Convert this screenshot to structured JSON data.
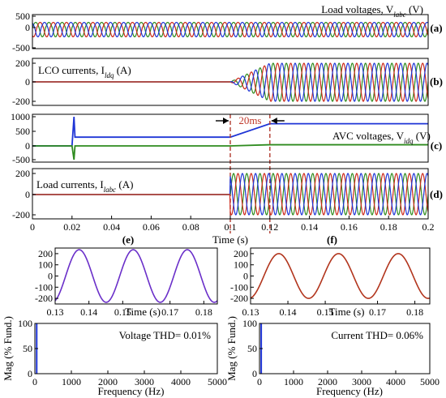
{
  "chart_data": [
    {
      "id": "a",
      "type": "line",
      "panel_label": "(a)",
      "annotation": "Load voltages, V",
      "annotation_sub": "labc",
      "annotation_unit": " (V)",
      "xlim": [
        0,
        0.2
      ],
      "ylim": [
        -500,
        500
      ],
      "yticks": [
        "500",
        "0",
        "-500"
      ],
      "series": [
        {
          "amplitude": 230,
          "freq_hz": 150,
          "phase_deg": 0,
          "color": "#2e8b1e"
        },
        {
          "amplitude": 230,
          "freq_hz": 150,
          "phase_deg": -120,
          "color": "#cc2a1a"
        },
        {
          "amplitude": 230,
          "freq_hz": 150,
          "phase_deg": 120,
          "color": "#1f35d6"
        }
      ]
    },
    {
      "id": "b",
      "type": "line",
      "panel_label": "(b)",
      "annotation": "LCO currents, I",
      "annotation_sub": "ldq",
      "annotation_unit": " (A)",
      "xlim": [
        0,
        0.2
      ],
      "ylim": [
        -200,
        200
      ],
      "yticks": [
        "200",
        "0",
        "-200"
      ],
      "step_time": 0.1,
      "ramp_end": 0.12,
      "series": [
        {
          "amplitude": 200,
          "freq_hz": 150,
          "phase_deg": 0,
          "color": "#2e8b1e"
        },
        {
          "amplitude": 200,
          "freq_hz": 150,
          "phase_deg": -120,
          "color": "#cc2a1a"
        },
        {
          "amplitude": 200,
          "freq_hz": 150,
          "phase_deg": 120,
          "color": "#1f35d6"
        }
      ]
    },
    {
      "id": "c",
      "type": "line",
      "panel_label": "(c)",
      "annotation": "AVC voltages, V",
      "annotation_sub": "idq",
      "annotation_unit": " (V)",
      "interval_label": "20ms",
      "xlim": [
        0,
        0.2
      ],
      "ylim": [
        -500,
        1000
      ],
      "yticks": [
        "1000",
        "500",
        "0",
        "-500"
      ],
      "spike_time": 0.021,
      "series": [
        {
          "name_code": "vd",
          "color": "#1f35d6",
          "points": [
            [
              0,
              0
            ],
            [
              0.02,
              0
            ],
            [
              0.021,
              1000
            ],
            [
              0.0215,
              300
            ],
            [
              0.023,
              300
            ],
            [
              0.1,
              300
            ],
            [
              0.12,
              760
            ],
            [
              0.2,
              760
            ]
          ]
        },
        {
          "name_code": "vq",
          "color": "#2e8b1e",
          "points": [
            [
              0,
              0
            ],
            [
              0.02,
              0
            ],
            [
              0.021,
              -500
            ],
            [
              0.0215,
              0
            ],
            [
              0.023,
              0
            ],
            [
              0.1,
              0
            ],
            [
              0.12,
              40
            ],
            [
              0.2,
              40
            ]
          ]
        }
      ]
    },
    {
      "id": "d",
      "type": "line",
      "panel_label": "(d)",
      "annotation": "Load currents, I",
      "annotation_sub": "labc",
      "annotation_unit": " (A)",
      "xlim": [
        0,
        0.2
      ],
      "ylim": [
        -200,
        200
      ],
      "yticks": [
        "200",
        "0",
        "-200"
      ],
      "xticks": [
        "0",
        "0.02",
        "0.04",
        "0.06",
        "0.08",
        "0.1",
        "0.12",
        "0.14",
        "0.16",
        "0.18",
        "0.2"
      ],
      "xlabel": "Time (s)",
      "step_time": 0.1,
      "series": [
        {
          "amplitude": 200,
          "freq_hz": 150,
          "phase_deg": 0,
          "color": "#2e8b1e"
        },
        {
          "amplitude": 200,
          "freq_hz": 150,
          "phase_deg": -120,
          "color": "#cc2a1a"
        },
        {
          "amplitude": 200,
          "freq_hz": 150,
          "phase_deg": 120,
          "color": "#1f35d6"
        }
      ]
    },
    {
      "id": "e",
      "type": "line",
      "panel_label": "(e)",
      "xlim": [
        0.13,
        0.19
      ],
      "ylim": [
        -250,
        250
      ],
      "yticks": [
        "200",
        "100",
        "0",
        "-100",
        "-200"
      ],
      "xticks": [
        "0.13",
        "0.14",
        "0.15",
        "0.17",
        "0.18"
      ],
      "xlabel": "Time (s)",
      "series": [
        {
          "amplitude": 235,
          "freq_hz": 50,
          "phase_deg": 110,
          "color": "#6a2fc9"
        }
      ]
    },
    {
      "id": "f",
      "type": "line",
      "panel_label": "(f)",
      "xlim": [
        0.13,
        0.19
      ],
      "ylim": [
        -250,
        250
      ],
      "yticks": [
        "200",
        "100",
        "0",
        "-100",
        "-200"
      ],
      "xticks": [
        "0.13",
        "0.14",
        "0.15",
        "0.17",
        "0.18"
      ],
      "xlabel": "Time (s)",
      "series": [
        {
          "amplitude": 200,
          "freq_hz": 50,
          "phase_deg": 100,
          "color": "#b2351d"
        }
      ]
    },
    {
      "id": "e-fft",
      "type": "bar",
      "xlim": [
        0,
        5000
      ],
      "ylim": [
        0,
        100
      ],
      "yticks": [
        "100",
        "50",
        "0"
      ],
      "xticks": [
        "0",
        "1000",
        "2000",
        "3000",
        "4000",
        "5000"
      ],
      "xlabel": "Frequency (Hz)",
      "ylabel": "Mag (% Fund.)",
      "annotation": "Voltage THD= 0.01%",
      "bars": [
        {
          "x": 50,
          "value": 100,
          "color": "#1f35d6"
        }
      ]
    },
    {
      "id": "f-fft",
      "type": "bar",
      "xlim": [
        0,
        5000
      ],
      "ylim": [
        0,
        100
      ],
      "yticks": [
        "100",
        "50",
        "0"
      ],
      "xticks": [
        "0",
        "1000",
        "2000",
        "3000",
        "4000",
        "5000"
      ],
      "xlabel": "Frequency (Hz)",
      "ylabel": "Mag (% Fund.)",
      "annotation": "Current THD= 0.06%",
      "bars": [
        {
          "x": 50,
          "value": 100,
          "color": "#1f35d6"
        }
      ]
    }
  ]
}
